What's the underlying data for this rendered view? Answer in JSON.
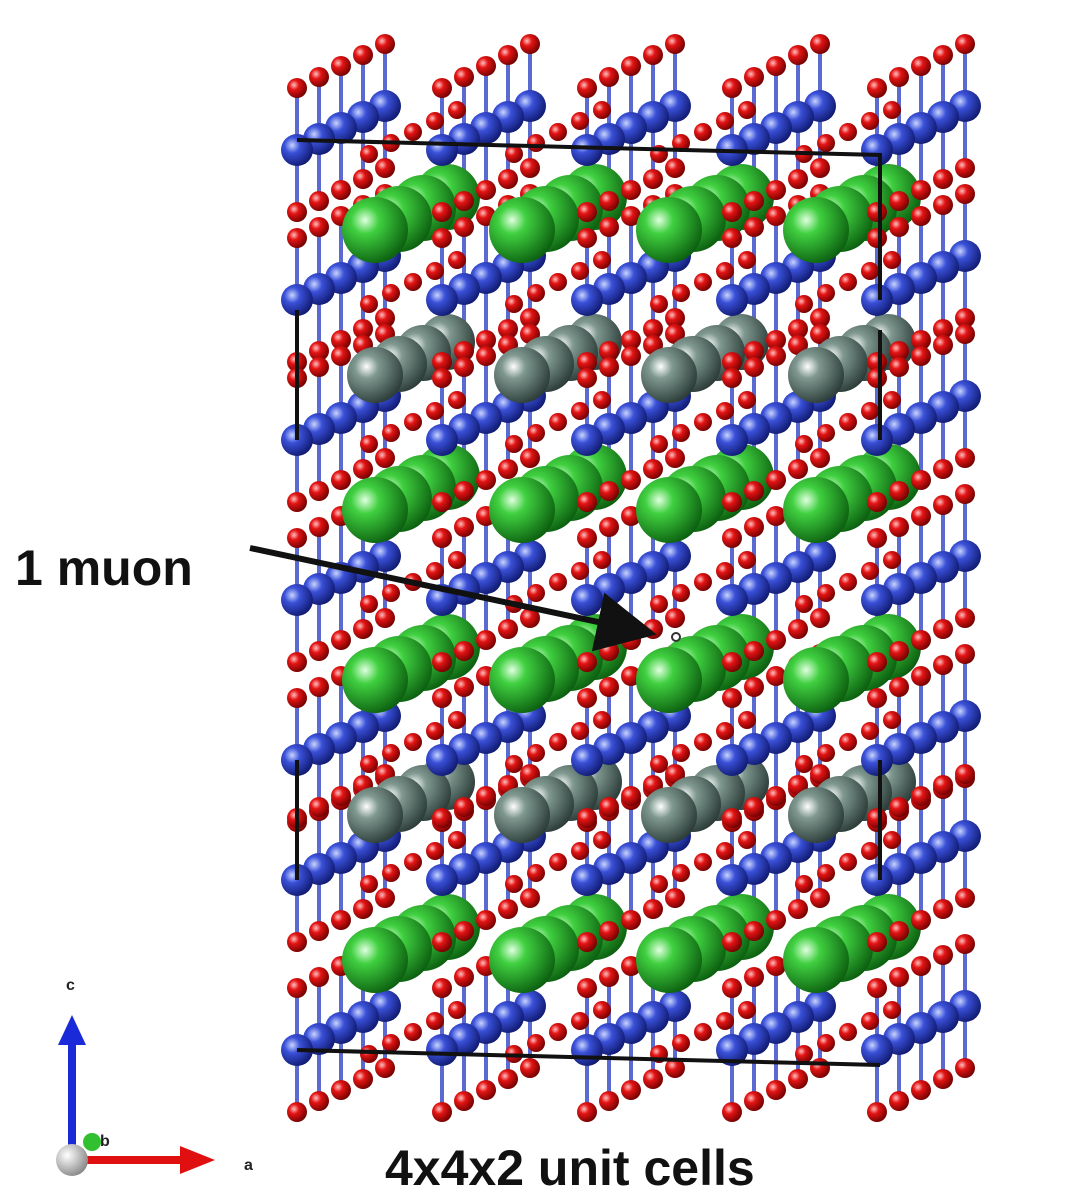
{
  "labels": {
    "muon": "1 muon",
    "cells": "4x4x2 unit cells"
  },
  "axes": {
    "c": "c",
    "b": "b",
    "a": "a"
  }
}
